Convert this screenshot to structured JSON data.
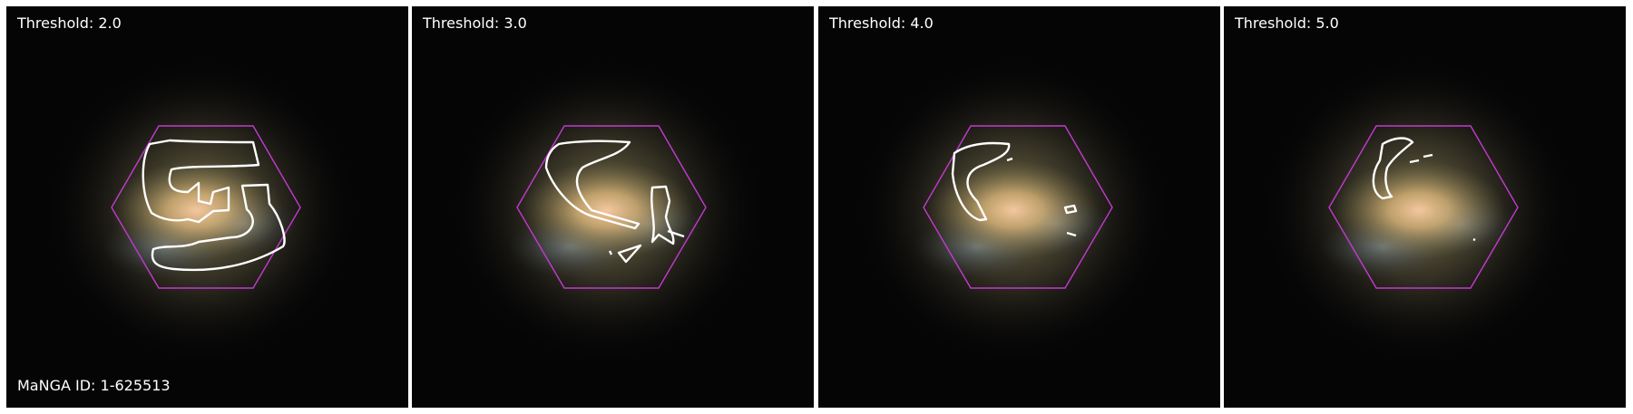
{
  "panels": [
    {
      "threshold_label": "Threshold: 2.0"
    },
    {
      "threshold_label": "Threshold: 3.0"
    },
    {
      "threshold_label": "Threshold: 4.0"
    },
    {
      "threshold_label": "Threshold: 5.0"
    }
  ],
  "galaxy_id_label": "MaNGA ID: 1-625513",
  "colors": {
    "hexagon": "#c23ad0",
    "contour": "#ffffff",
    "background": "#050506",
    "divider": "#ffffff"
  }
}
